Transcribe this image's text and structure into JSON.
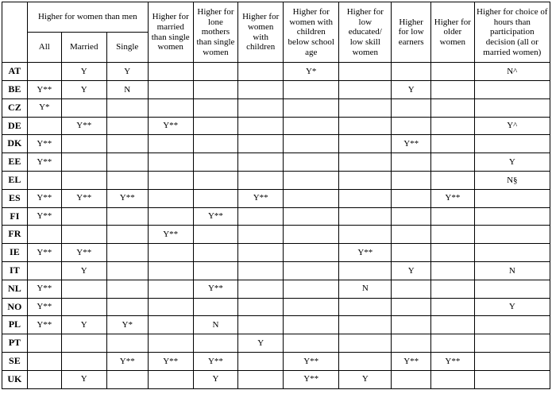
{
  "headers": {
    "group1": "Higher for women than men",
    "sub_all": "All",
    "sub_married": "Married",
    "sub_single": "Single",
    "c4": "Higher for married than single women",
    "c5": "Higher for lone mothers than single women",
    "c6": "Higher for women with children",
    "c7": "Higher for women with children below school age",
    "c8": "Higher for low educated/ low skill women",
    "c9": "Higher for low earners",
    "c10": "Higher for older women",
    "c11": "Higher for choice of hours than participation decision (all or married women)"
  },
  "rows": [
    {
      "code": "AT",
      "all": "",
      "married": "Y",
      "single": "Y",
      "c4": "",
      "c5": "",
      "c6": "",
      "c7": "Y*",
      "c8": "",
      "c9": "",
      "c10": "",
      "c11": "N^"
    },
    {
      "code": "BE",
      "all": "Y**",
      "married": "Y",
      "single": "N",
      "c4": "",
      "c5": "",
      "c6": "",
      "c7": "",
      "c8": "",
      "c9": "Y",
      "c10": "",
      "c11": ""
    },
    {
      "code": "CZ",
      "all": "Y*",
      "married": "",
      "single": "",
      "c4": "",
      "c5": "",
      "c6": "",
      "c7": "",
      "c8": "",
      "c9": "",
      "c10": "",
      "c11": ""
    },
    {
      "code": "DE",
      "all": "",
      "married": "Y**",
      "single": "",
      "c4": "Y**",
      "c5": "",
      "c6": "",
      "c7": "",
      "c8": "",
      "c9": "",
      "c10": "",
      "c11": "Y^"
    },
    {
      "code": "DK",
      "all": "Y**",
      "married": "",
      "single": "",
      "c4": "",
      "c5": "",
      "c6": "",
      "c7": "",
      "c8": "",
      "c9": "Y**",
      "c10": "",
      "c11": ""
    },
    {
      "code": "EE",
      "all": "Y**",
      "married": "",
      "single": "",
      "c4": "",
      "c5": "",
      "c6": "",
      "c7": "",
      "c8": "",
      "c9": "",
      "c10": "",
      "c11": "Y"
    },
    {
      "code": "EL",
      "all": "",
      "married": "",
      "single": "",
      "c4": "",
      "c5": "",
      "c6": "",
      "c7": "",
      "c8": "",
      "c9": "",
      "c10": "",
      "c11": "N§"
    },
    {
      "code": "ES",
      "all": "Y**",
      "married": "Y**",
      "single": "Y**",
      "c4": "",
      "c5": "",
      "c6": "Y**",
      "c7": "",
      "c8": "",
      "c9": "",
      "c10": "Y**",
      "c11": ""
    },
    {
      "code": "FI",
      "all": "Y**",
      "married": "",
      "single": "",
      "c4": "",
      "c5": "Y**",
      "c6": "",
      "c7": "",
      "c8": "",
      "c9": "",
      "c10": "",
      "c11": ""
    },
    {
      "code": "FR",
      "all": "",
      "married": "",
      "single": "",
      "c4": "Y**",
      "c5": "",
      "c6": "",
      "c7": "",
      "c8": "",
      "c9": "",
      "c10": "",
      "c11": ""
    },
    {
      "code": "IE",
      "all": "Y**",
      "married": "Y**",
      "single": "",
      "c4": "",
      "c5": "",
      "c6": "",
      "c7": "",
      "c8": "Y**",
      "c9": "",
      "c10": "",
      "c11": ""
    },
    {
      "code": "IT",
      "all": "",
      "married": "Y",
      "single": "",
      "c4": "",
      "c5": "",
      "c6": "",
      "c7": "",
      "c8": "",
      "c9": "Y",
      "c10": "",
      "c11": "N"
    },
    {
      "code": "NL",
      "all": "Y**",
      "married": "",
      "single": "",
      "c4": "",
      "c5": "Y**",
      "c6": "",
      "c7": "",
      "c8": "N",
      "c9": "",
      "c10": "",
      "c11": ""
    },
    {
      "code": "NO",
      "all": "Y**",
      "married": "",
      "single": "",
      "c4": "",
      "c5": "",
      "c6": "",
      "c7": "",
      "c8": "",
      "c9": "",
      "c10": "",
      "c11": "Y"
    },
    {
      "code": "PL",
      "all": "Y**",
      "married": "Y",
      "single": "Y*",
      "c4": "",
      "c5": "N",
      "c6": "",
      "c7": "",
      "c8": "",
      "c9": "",
      "c10": "",
      "c11": ""
    },
    {
      "code": "PT",
      "all": "",
      "married": "",
      "single": "",
      "c4": "",
      "c5": "",
      "c6": "Y",
      "c7": "",
      "c8": "",
      "c9": "",
      "c10": "",
      "c11": ""
    },
    {
      "code": "SE",
      "all": "",
      "married": "",
      "single": "Y**",
      "c4": "Y**",
      "c5": "Y**",
      "c6": "",
      "c7": "Y**",
      "c8": "",
      "c9": "Y**",
      "c10": "Y**",
      "c11": ""
    },
    {
      "code": "UK",
      "all": "",
      "married": "Y",
      "single": "",
      "c4": "",
      "c5": "Y",
      "c6": "",
      "c7": "Y**",
      "c8": "Y",
      "c9": "",
      "c10": "",
      "c11": ""
    }
  ]
}
